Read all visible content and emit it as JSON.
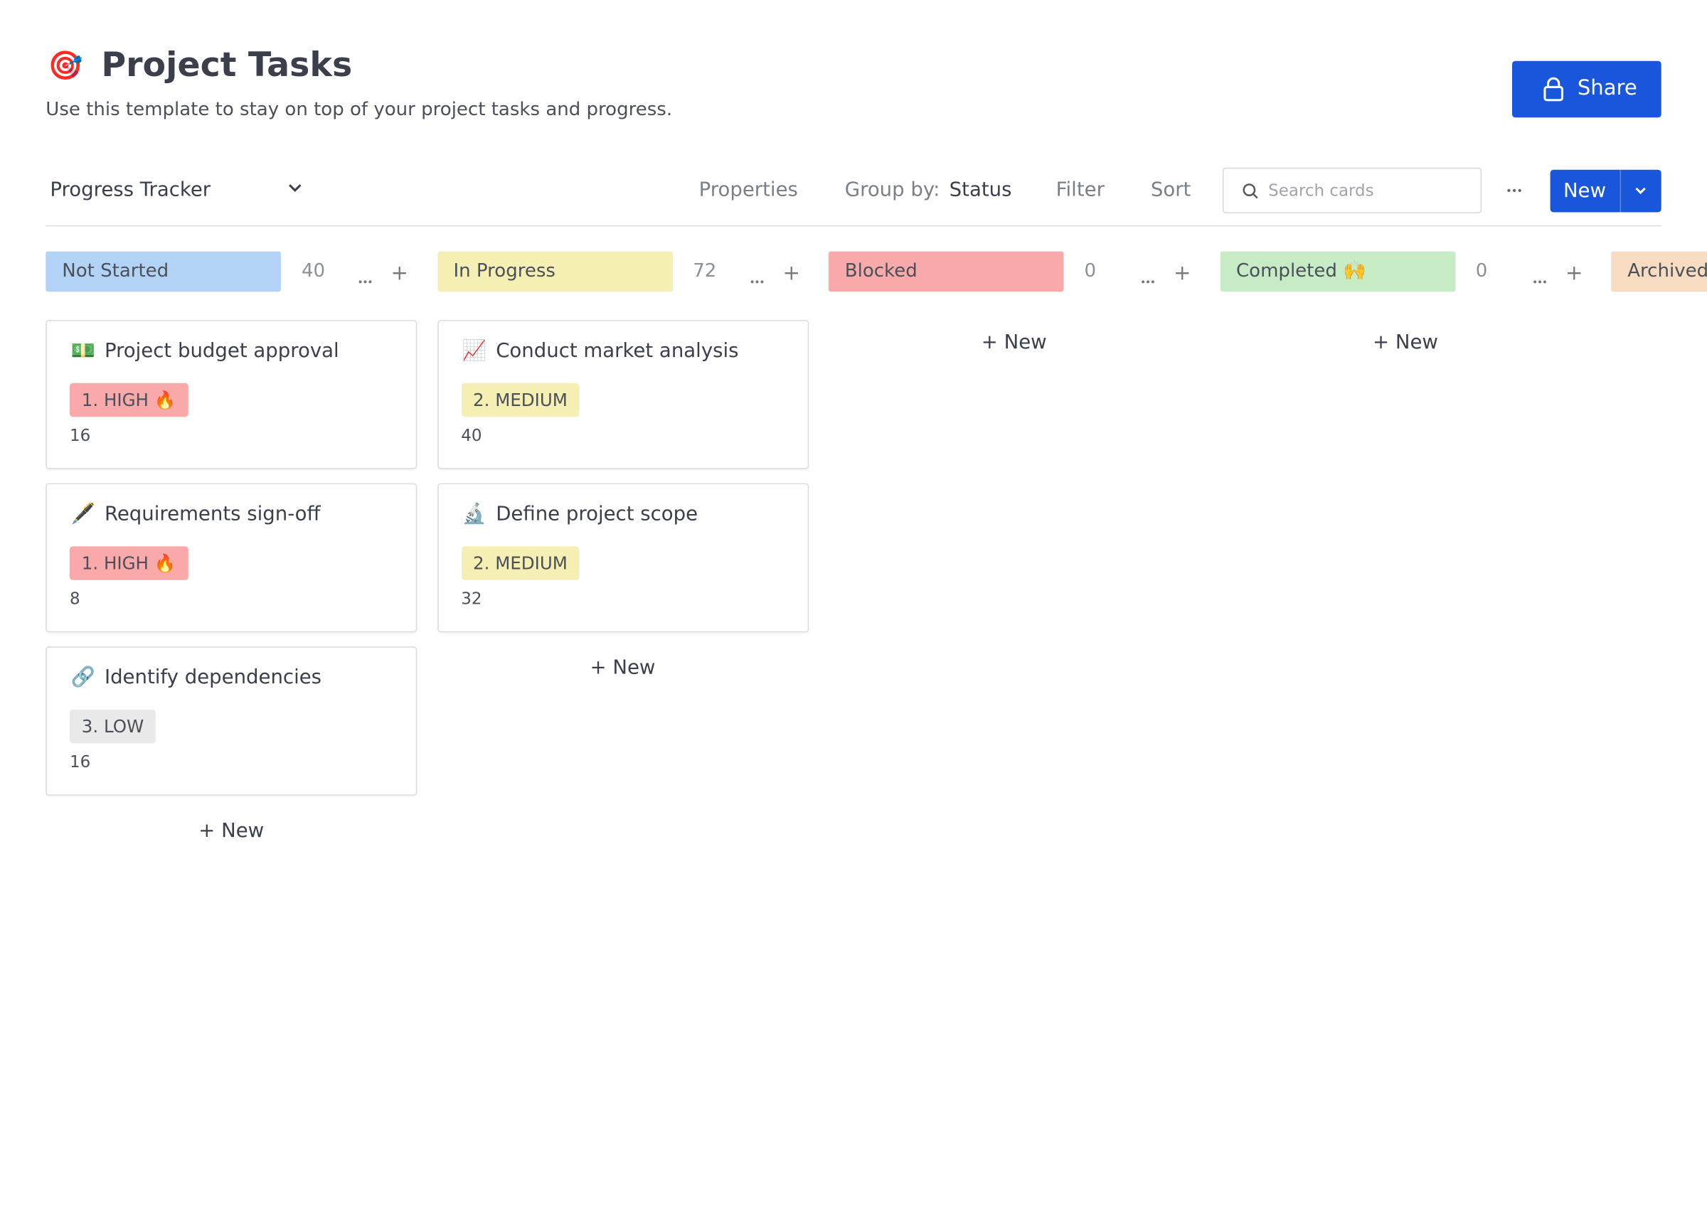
{
  "header": {
    "icon": "🎯",
    "title": "Project Tasks",
    "subtitle": "Use this template to stay on top of your project tasks and progress.",
    "share": "Share"
  },
  "toolbar": {
    "view": "Progress Tracker",
    "properties": "Properties",
    "group_by_label": "Group by:",
    "group_by_value": "Status",
    "filter": "Filter",
    "sort": "Sort",
    "search_placeholder": "Search cards",
    "new": "New"
  },
  "columns": [
    {
      "name": "Not Started",
      "color": "#b3d3f6",
      "count": "40",
      "add_label": "+ New",
      "cards": [
        {
          "icon": "💵",
          "title": "Project budget approval",
          "priority": "1. HIGH 🔥",
          "priority_color": "#f9a9a9",
          "number": "16"
        },
        {
          "icon": "🖋️",
          "title": "Requirements sign-off",
          "priority": "1. HIGH 🔥",
          "priority_color": "#f9a9a9",
          "number": "8"
        },
        {
          "icon": "🔗",
          "title": "Identify dependencies",
          "priority": "3. LOW",
          "priority_color": "#e9e9e9",
          "number": "16"
        }
      ]
    },
    {
      "name": "In Progress",
      "color": "#f6efb4",
      "count": "72",
      "add_label": "+ New",
      "cards": [
        {
          "icon": "📈",
          "title": "Conduct market analysis",
          "priority": "2. MEDIUM",
          "priority_color": "#f6efb4",
          "number": "40"
        },
        {
          "icon": "🔬",
          "title": "Define project scope",
          "priority": "2. MEDIUM",
          "priority_color": "#f6efb4",
          "number": "32"
        }
      ]
    },
    {
      "name": "Blocked",
      "color": "#f9a9a9",
      "count": "0",
      "add_label": "+ New",
      "cards": []
    },
    {
      "name": "Completed 🙌",
      "color": "#c7ebc4",
      "count": "0",
      "add_label": "+ New",
      "cards": []
    },
    {
      "name": "Archived",
      "color": "#f8dcc1"
    }
  ]
}
